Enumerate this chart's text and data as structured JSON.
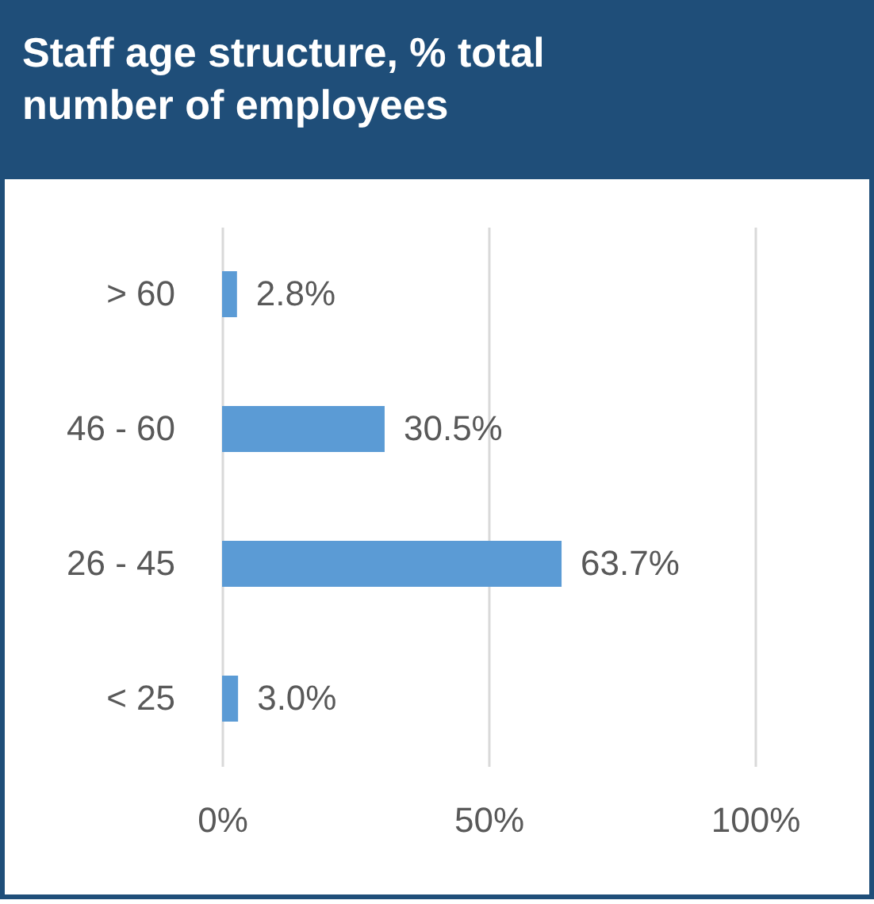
{
  "chart_data": {
    "type": "bar",
    "orientation": "horizontal",
    "title": "Staff age structure, % total number of employees",
    "categories": [
      "> 60",
      "46 - 60",
      "26 - 45",
      "< 25"
    ],
    "values": [
      2.8,
      30.5,
      63.7,
      3.0
    ],
    "value_labels": [
      "2.8%",
      "30.5%",
      "63.7%",
      "3.0%"
    ],
    "color": "#5b9bd5",
    "xlim": [
      0,
      100
    ],
    "xticks": [
      {
        "value": 0,
        "label": "0%"
      },
      {
        "value": 50,
        "label": "50%"
      },
      {
        "value": 100,
        "label": "100%"
      }
    ],
    "grid": "x"
  }
}
